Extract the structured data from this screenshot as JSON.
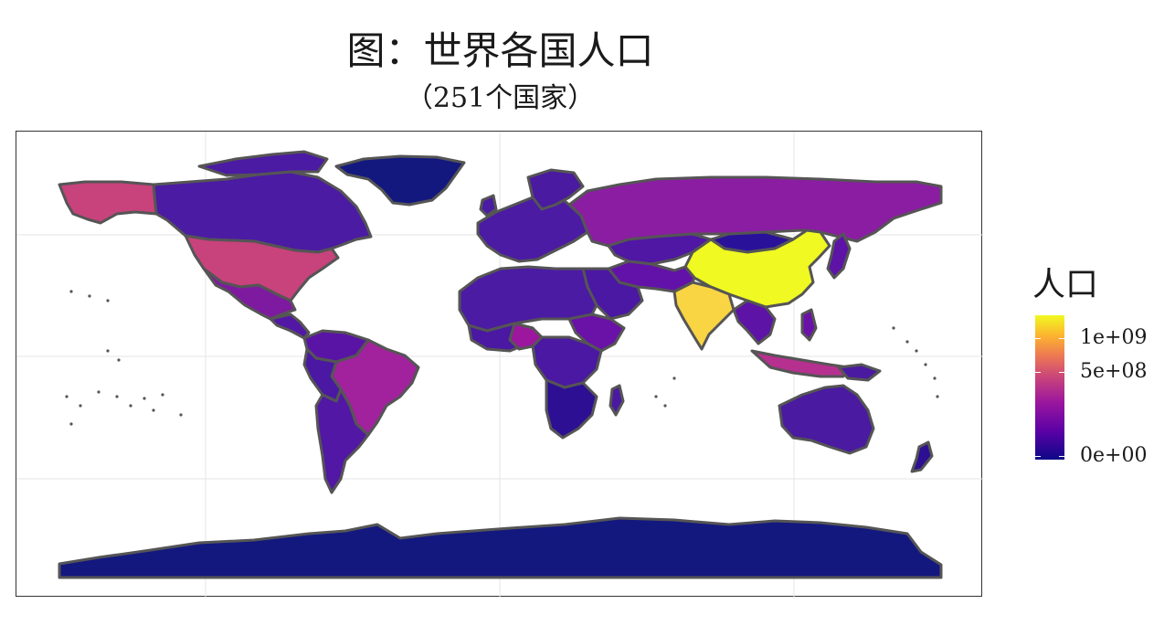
{
  "title": "图：世界各国人口",
  "subtitle": "（251个国家）",
  "legend": {
    "title": "人口",
    "ticks": [
      {
        "label": "1e+09",
        "value": 1000000000
      },
      {
        "label": "5e+08",
        "value": 500000000
      },
      {
        "label": "0e+00",
        "value": 0
      }
    ],
    "max_value": 1400000000,
    "palette": [
      "#0d0887",
      "#5c01a6",
      "#9c179e",
      "#cc4778",
      "#ed7953",
      "#fdb42f",
      "#f0f921"
    ]
  },
  "countries": [
    {
      "name": "China",
      "population": 1390000000
    },
    {
      "name": "India",
      "population": 1350000000
    },
    {
      "name": "United States",
      "population": 327000000
    },
    {
      "name": "Brazil",
      "population": 209000000
    },
    {
      "name": "Russia",
      "population": 144000000
    },
    {
      "name": "Indonesia",
      "population": 267000000
    },
    {
      "name": "Canada",
      "population": 37000000
    },
    {
      "name": "Greenland",
      "population": 56000
    },
    {
      "name": "Antarctica",
      "population": 0
    }
  ]
}
